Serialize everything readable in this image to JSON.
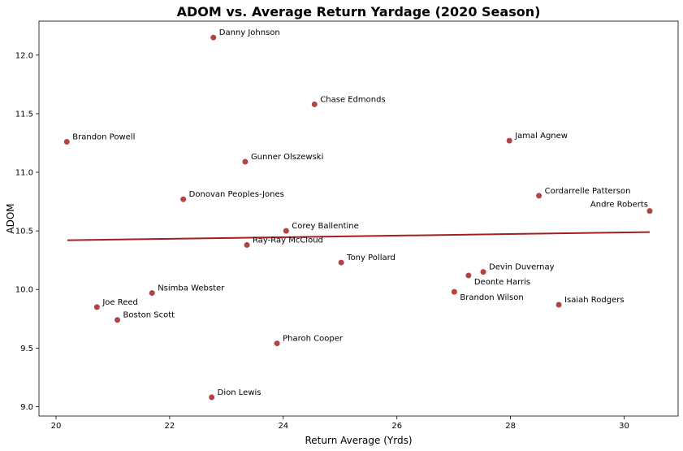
{
  "chart_data": {
    "type": "scatter",
    "title": "ADOM vs. Average Return Yardage (2020 Season)",
    "xlabel": "Return Average (Yrds)",
    "ylabel": "ADOM",
    "xlim": [
      19.7,
      30.95
    ],
    "ylim": [
      8.92,
      12.29
    ],
    "xticks": [
      20,
      22,
      24,
      26,
      28,
      30
    ],
    "yticks": [
      9.0,
      9.5,
      10.0,
      10.5,
      11.0,
      11.5,
      12.0
    ],
    "grid": false,
    "point_color": "#b04545",
    "trend_color": "#a31f1f",
    "trendline": {
      "x": [
        20.2,
        30.45
      ],
      "y": [
        10.42,
        10.49
      ]
    },
    "points": [
      {
        "name": "Danny Johnson",
        "x": 22.77,
        "y": 12.15
      },
      {
        "name": "Chase Edmonds",
        "x": 24.55,
        "y": 11.58
      },
      {
        "name": "Brandon Powell",
        "x": 20.19,
        "y": 11.26
      },
      {
        "name": "Jamal Agnew",
        "x": 27.98,
        "y": 11.27
      },
      {
        "name": "Gunner Olszewski",
        "x": 23.33,
        "y": 11.09
      },
      {
        "name": "Donovan Peoples-Jones",
        "x": 22.24,
        "y": 10.77
      },
      {
        "name": "Cordarrelle Patterson",
        "x": 28.5,
        "y": 10.8
      },
      {
        "name": "Andre Roberts",
        "x": 30.45,
        "y": 10.67
      },
      {
        "name": "Corey Ballentine",
        "x": 24.05,
        "y": 10.5
      },
      {
        "name": "Ray-Ray McCloud",
        "x": 23.36,
        "y": 10.38
      },
      {
        "name": "Tony Pollard",
        "x": 25.02,
        "y": 10.23
      },
      {
        "name": "Devin Duvernay",
        "x": 27.52,
        "y": 10.15
      },
      {
        "name": "Deonte Harris",
        "x": 27.26,
        "y": 10.12
      },
      {
        "name": "Brandon Wilson",
        "x": 27.01,
        "y": 9.98
      },
      {
        "name": "Nsimba Webster",
        "x": 21.69,
        "y": 9.97
      },
      {
        "name": "Isaiah Rodgers",
        "x": 28.85,
        "y": 9.87
      },
      {
        "name": "Joe Reed",
        "x": 20.72,
        "y": 9.85
      },
      {
        "name": "Boston Scott",
        "x": 21.08,
        "y": 9.74
      },
      {
        "name": "Pharoh Cooper",
        "x": 23.89,
        "y": 9.54
      },
      {
        "name": "Dion Lewis",
        "x": 22.74,
        "y": 9.08
      }
    ]
  }
}
